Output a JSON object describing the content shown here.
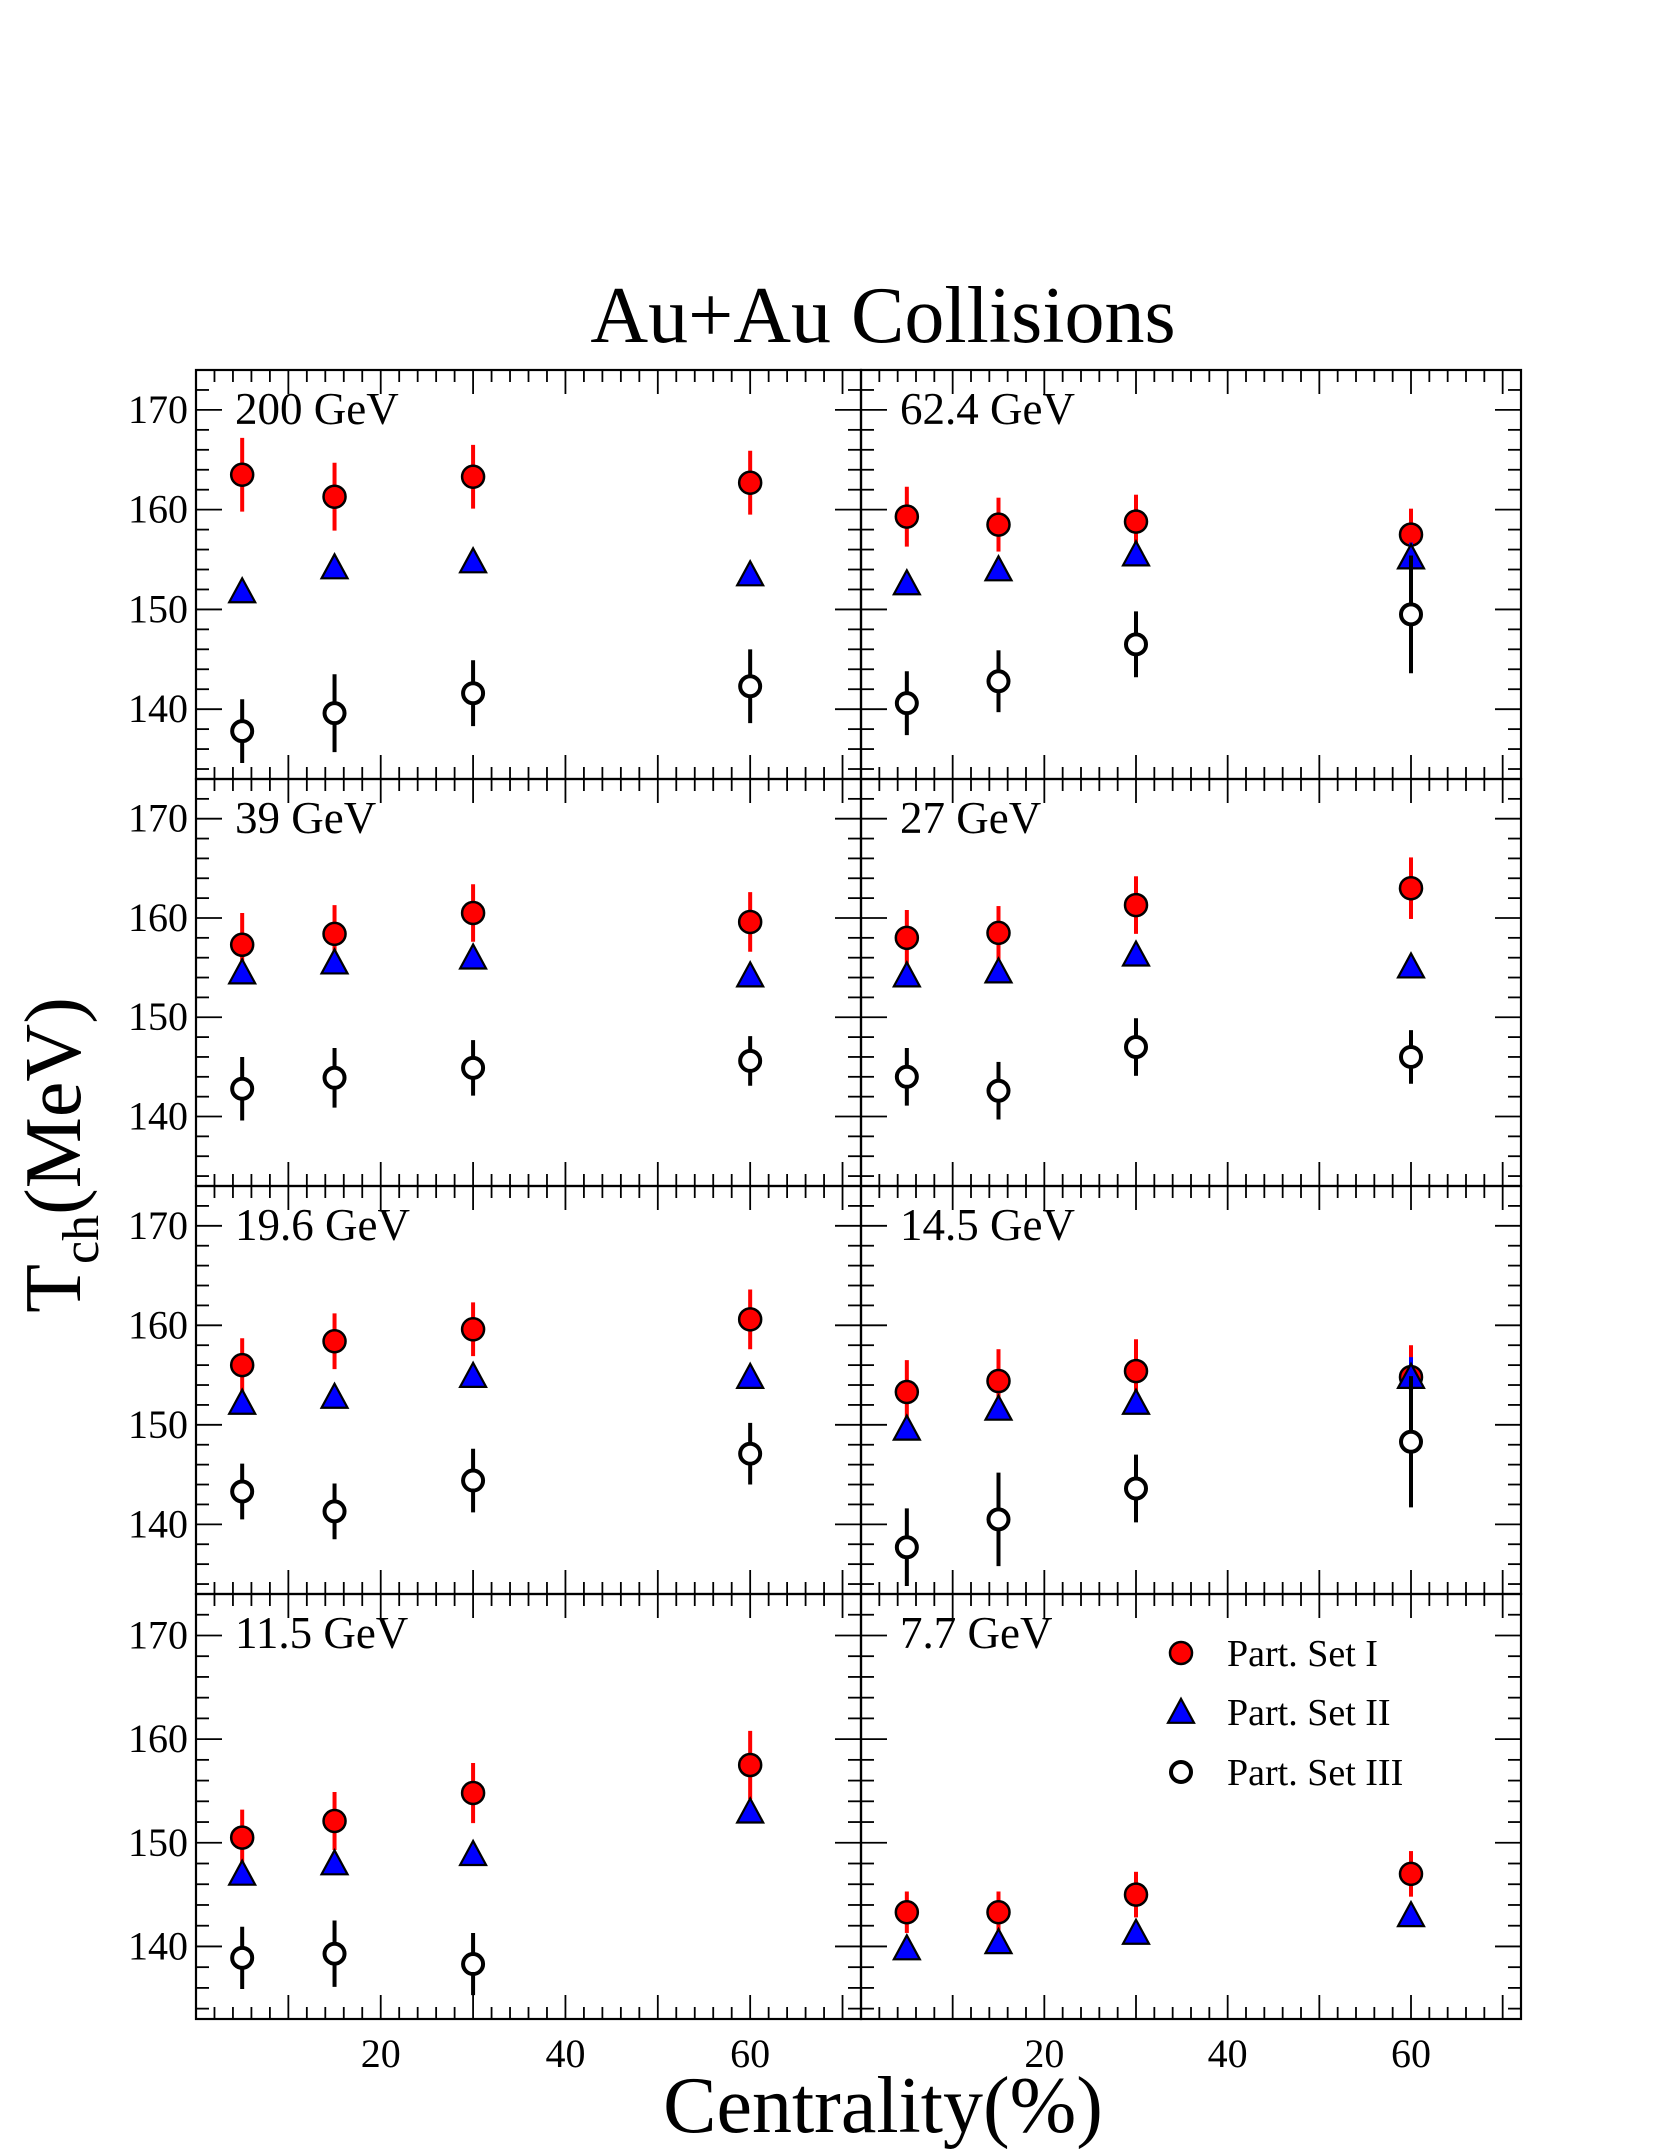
{
  "chart_data": {
    "type": "scatter",
    "title": "Au+Au Collisions",
    "xlabel": "Centrality(%)",
    "ylabel": {
      "main": "T",
      "sub": "ch",
      "unit": "(MeV)"
    },
    "xlim": [
      0,
      72
    ],
    "ylim": [
      133,
      174
    ],
    "x_ticks": [
      20,
      40,
      60
    ],
    "y_ticks": [
      140,
      150,
      160,
      170
    ],
    "grid": false,
    "legend_position": "top-right of 7.7 GeV panel",
    "series_styles": [
      {
        "name": "Part. Set I",
        "marker": "circle-filled",
        "fill": "#ff0000",
        "stroke": "#000000",
        "error_color": "#ff0000"
      },
      {
        "name": "Part. Set II",
        "marker": "triangle-filled",
        "fill": "#0000ff",
        "stroke": "#000000",
        "error_color": "#0000ff"
      },
      {
        "name": "Part. Set III",
        "marker": "circle-open",
        "fill": "#ffffff",
        "stroke": "#000000",
        "error_color": "#000000"
      }
    ],
    "panels": [
      {
        "label": "200 GeV",
        "x": [
          5,
          15,
          30,
          60
        ],
        "series": [
          {
            "name": "Part. Set I",
            "y": [
              163.5,
              161.3,
              163.3,
              162.7
            ],
            "err": [
              3.7,
              3.4,
              3.2,
              3.2
            ]
          },
          {
            "name": "Part. Set II",
            "y": [
              151.8,
              154.2,
              154.8,
              153.5
            ],
            "err": [
              0.5,
              0.5,
              0.5,
              0.5
            ]
          },
          {
            "name": "Part. Set III",
            "y": [
              137.8,
              139.6,
              141.6,
              142.3
            ],
            "err": [
              3.2,
              3.9,
              3.3,
              3.7
            ]
          }
        ]
      },
      {
        "label": "62.4 GeV",
        "x": [
          5,
          15,
          30,
          60
        ],
        "series": [
          {
            "name": "Part. Set I",
            "y": [
              159.3,
              158.5,
              158.8,
              157.5
            ],
            "err": [
              3.0,
              2.7,
              2.7,
              2.6
            ]
          },
          {
            "name": "Part. Set II",
            "y": [
              152.6,
              154.0,
              155.5,
              155.2
            ],
            "err": [
              0.5,
              0.5,
              0.5,
              1.5
            ]
          },
          {
            "name": "Part. Set III",
            "y": [
              140.6,
              142.8,
              146.5,
              149.5
            ],
            "err": [
              3.2,
              3.1,
              3.3,
              5.9
            ]
          }
        ]
      },
      {
        "label": "39 GeV",
        "x": [
          5,
          15,
          30,
          60
        ],
        "series": [
          {
            "name": "Part. Set I",
            "y": [
              157.3,
              158.4,
              160.5,
              159.6
            ],
            "err": [
              3.2,
              2.9,
              2.9,
              3.0
            ]
          },
          {
            "name": "Part. Set II",
            "y": [
              154.5,
              155.5,
              156.0,
              154.2
            ],
            "err": [
              0.5,
              0.5,
              0.5,
              0.5
            ]
          },
          {
            "name": "Part. Set III",
            "y": [
              142.8,
              143.9,
              144.9,
              145.6
            ],
            "err": [
              3.2,
              3.0,
              2.8,
              2.5
            ]
          }
        ]
      },
      {
        "label": "27 GeV",
        "x": [
          5,
          15,
          30,
          60
        ],
        "series": [
          {
            "name": "Part. Set I",
            "y": [
              158.0,
              158.5,
              161.3,
              163.0
            ],
            "err": [
              2.8,
              2.7,
              2.9,
              3.1
            ]
          },
          {
            "name": "Part. Set II",
            "y": [
              154.2,
              154.6,
              156.3,
              155.1
            ],
            "err": [
              0.5,
              0.5,
              0.5,
              0.5
            ]
          },
          {
            "name": "Part. Set III",
            "y": [
              144.0,
              142.6,
              147.0,
              146.0
            ],
            "err": [
              2.9,
              2.9,
              2.9,
              2.7
            ]
          }
        ]
      },
      {
        "label": "19.6 GeV",
        "x": [
          5,
          15,
          30,
          60
        ],
        "series": [
          {
            "name": "Part. Set I",
            "y": [
              156.0,
              158.4,
              159.6,
              160.6
            ],
            "err": [
              2.7,
              2.8,
              2.7,
              3.0
            ]
          },
          {
            "name": "Part. Set II",
            "y": [
              152.2,
              152.8,
              154.9,
              154.8
            ],
            "err": [
              0.5,
              0.5,
              0.5,
              0.5
            ]
          },
          {
            "name": "Part. Set III",
            "y": [
              143.3,
              141.3,
              144.4,
              147.1
            ],
            "err": [
              2.8,
              2.8,
              3.2,
              3.1
            ]
          }
        ]
      },
      {
        "label": "14.5 GeV",
        "x": [
          5,
          15,
          30,
          60
        ],
        "series": [
          {
            "name": "Part. Set I",
            "y": [
              153.3,
              154.4,
              155.4,
              154.8
            ],
            "err": [
              3.2,
              3.2,
              3.2,
              3.2
            ]
          },
          {
            "name": "Part. Set II",
            "y": [
              149.6,
              151.6,
              152.2,
              154.8
            ],
            "err": [
              0.5,
              0.5,
              0.5,
              2.0
            ]
          },
          {
            "name": "Part. Set III",
            "y": [
              137.7,
              140.5,
              143.6,
              148.3
            ],
            "err": [
              3.9,
              4.7,
              3.4,
              6.6
            ]
          }
        ]
      },
      {
        "label": "11.5 GeV",
        "x": [
          5,
          15,
          30,
          60
        ],
        "series": [
          {
            "name": "Part. Set I",
            "y": [
              150.5,
              152.1,
              154.8,
              157.5
            ],
            "err": [
              2.7,
              2.8,
              2.9,
              3.3
            ]
          },
          {
            "name": "Part. Set II",
            "y": [
              147.0,
              148.0,
              148.9,
              153.0
            ],
            "err": [
              0.5,
              0.5,
              0.5,
              0.5
            ]
          },
          {
            "name": "Part. Set III",
            "y": [
              138.9,
              139.3,
              138.3,
              null
            ],
            "err": [
              3.0,
              3.2,
              3.0,
              null
            ]
          }
        ]
      },
      {
        "label": "7.7 GeV",
        "x": [
          5,
          15,
          30,
          60
        ],
        "series": [
          {
            "name": "Part. Set I",
            "y": [
              143.3,
              143.3,
              145.0,
              147.0
            ],
            "err": [
              2.0,
              2.0,
              2.2,
              2.2
            ]
          },
          {
            "name": "Part. Set II",
            "y": [
              139.8,
              140.4,
              141.3,
              143.0
            ],
            "err": [
              0.4,
              0.4,
              0.4,
              0.4
            ]
          },
          {
            "name": "Part. Set III",
            "y": [
              null,
              null,
              null,
              null
            ],
            "err": [
              null,
              null,
              null,
              null
            ]
          }
        ]
      }
    ]
  }
}
